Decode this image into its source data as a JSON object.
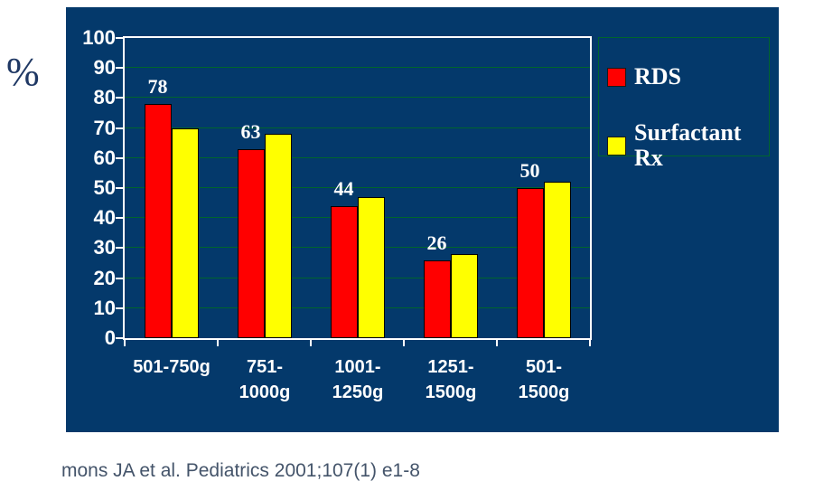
{
  "page": {
    "background": "#FFFFFF"
  },
  "caption": "mons JA et al. Pediatrics 2001;107(1) e1-8",
  "chart_data": {
    "type": "bar",
    "title": "",
    "xlabel": "",
    "ylabel": "%",
    "ylim": [
      0,
      100
    ],
    "ytick_step": 10,
    "yticks": [
      0,
      10,
      20,
      30,
      40,
      50,
      60,
      70,
      80,
      90,
      100
    ],
    "grid": true,
    "legend_position": "top-right",
    "categories": [
      "501-750g",
      "751-1000g",
      "1001-1250g",
      "1251-1500g",
      "501-1500g"
    ],
    "category_label_lines": [
      [
        "501-750g"
      ],
      [
        "751-",
        "1000g"
      ],
      [
        "1001-",
        "1250g"
      ],
      [
        "1251-",
        "1500g"
      ],
      [
        "501-",
        "1500g"
      ]
    ],
    "series": [
      {
        "name": "RDS",
        "color": "#FF0000",
        "values": [
          78,
          63,
          44,
          26,
          50
        ],
        "show_labels": true,
        "data_labels": [
          78,
          63,
          44,
          26,
          50
        ]
      },
      {
        "name": "Surfactant Rx",
        "color": "#FFFF00",
        "values": [
          70,
          68,
          47,
          28,
          52
        ],
        "show_labels": false
      }
    ]
  },
  "theme": {
    "chart_background": "#04396B",
    "plot_border": "#FFFFFF",
    "gridline": "#00652D",
    "tick_color": "#FFFFFF",
    "axis_label_color": "#FFFFFF",
    "data_label_color": "#FFFFFF",
    "legend_text_color": "#FFFFFF",
    "legend_border": "#00652D",
    "bar_border": "#000000",
    "ylabel_color": "#1F3864",
    "caption_color": "#44546A"
  }
}
